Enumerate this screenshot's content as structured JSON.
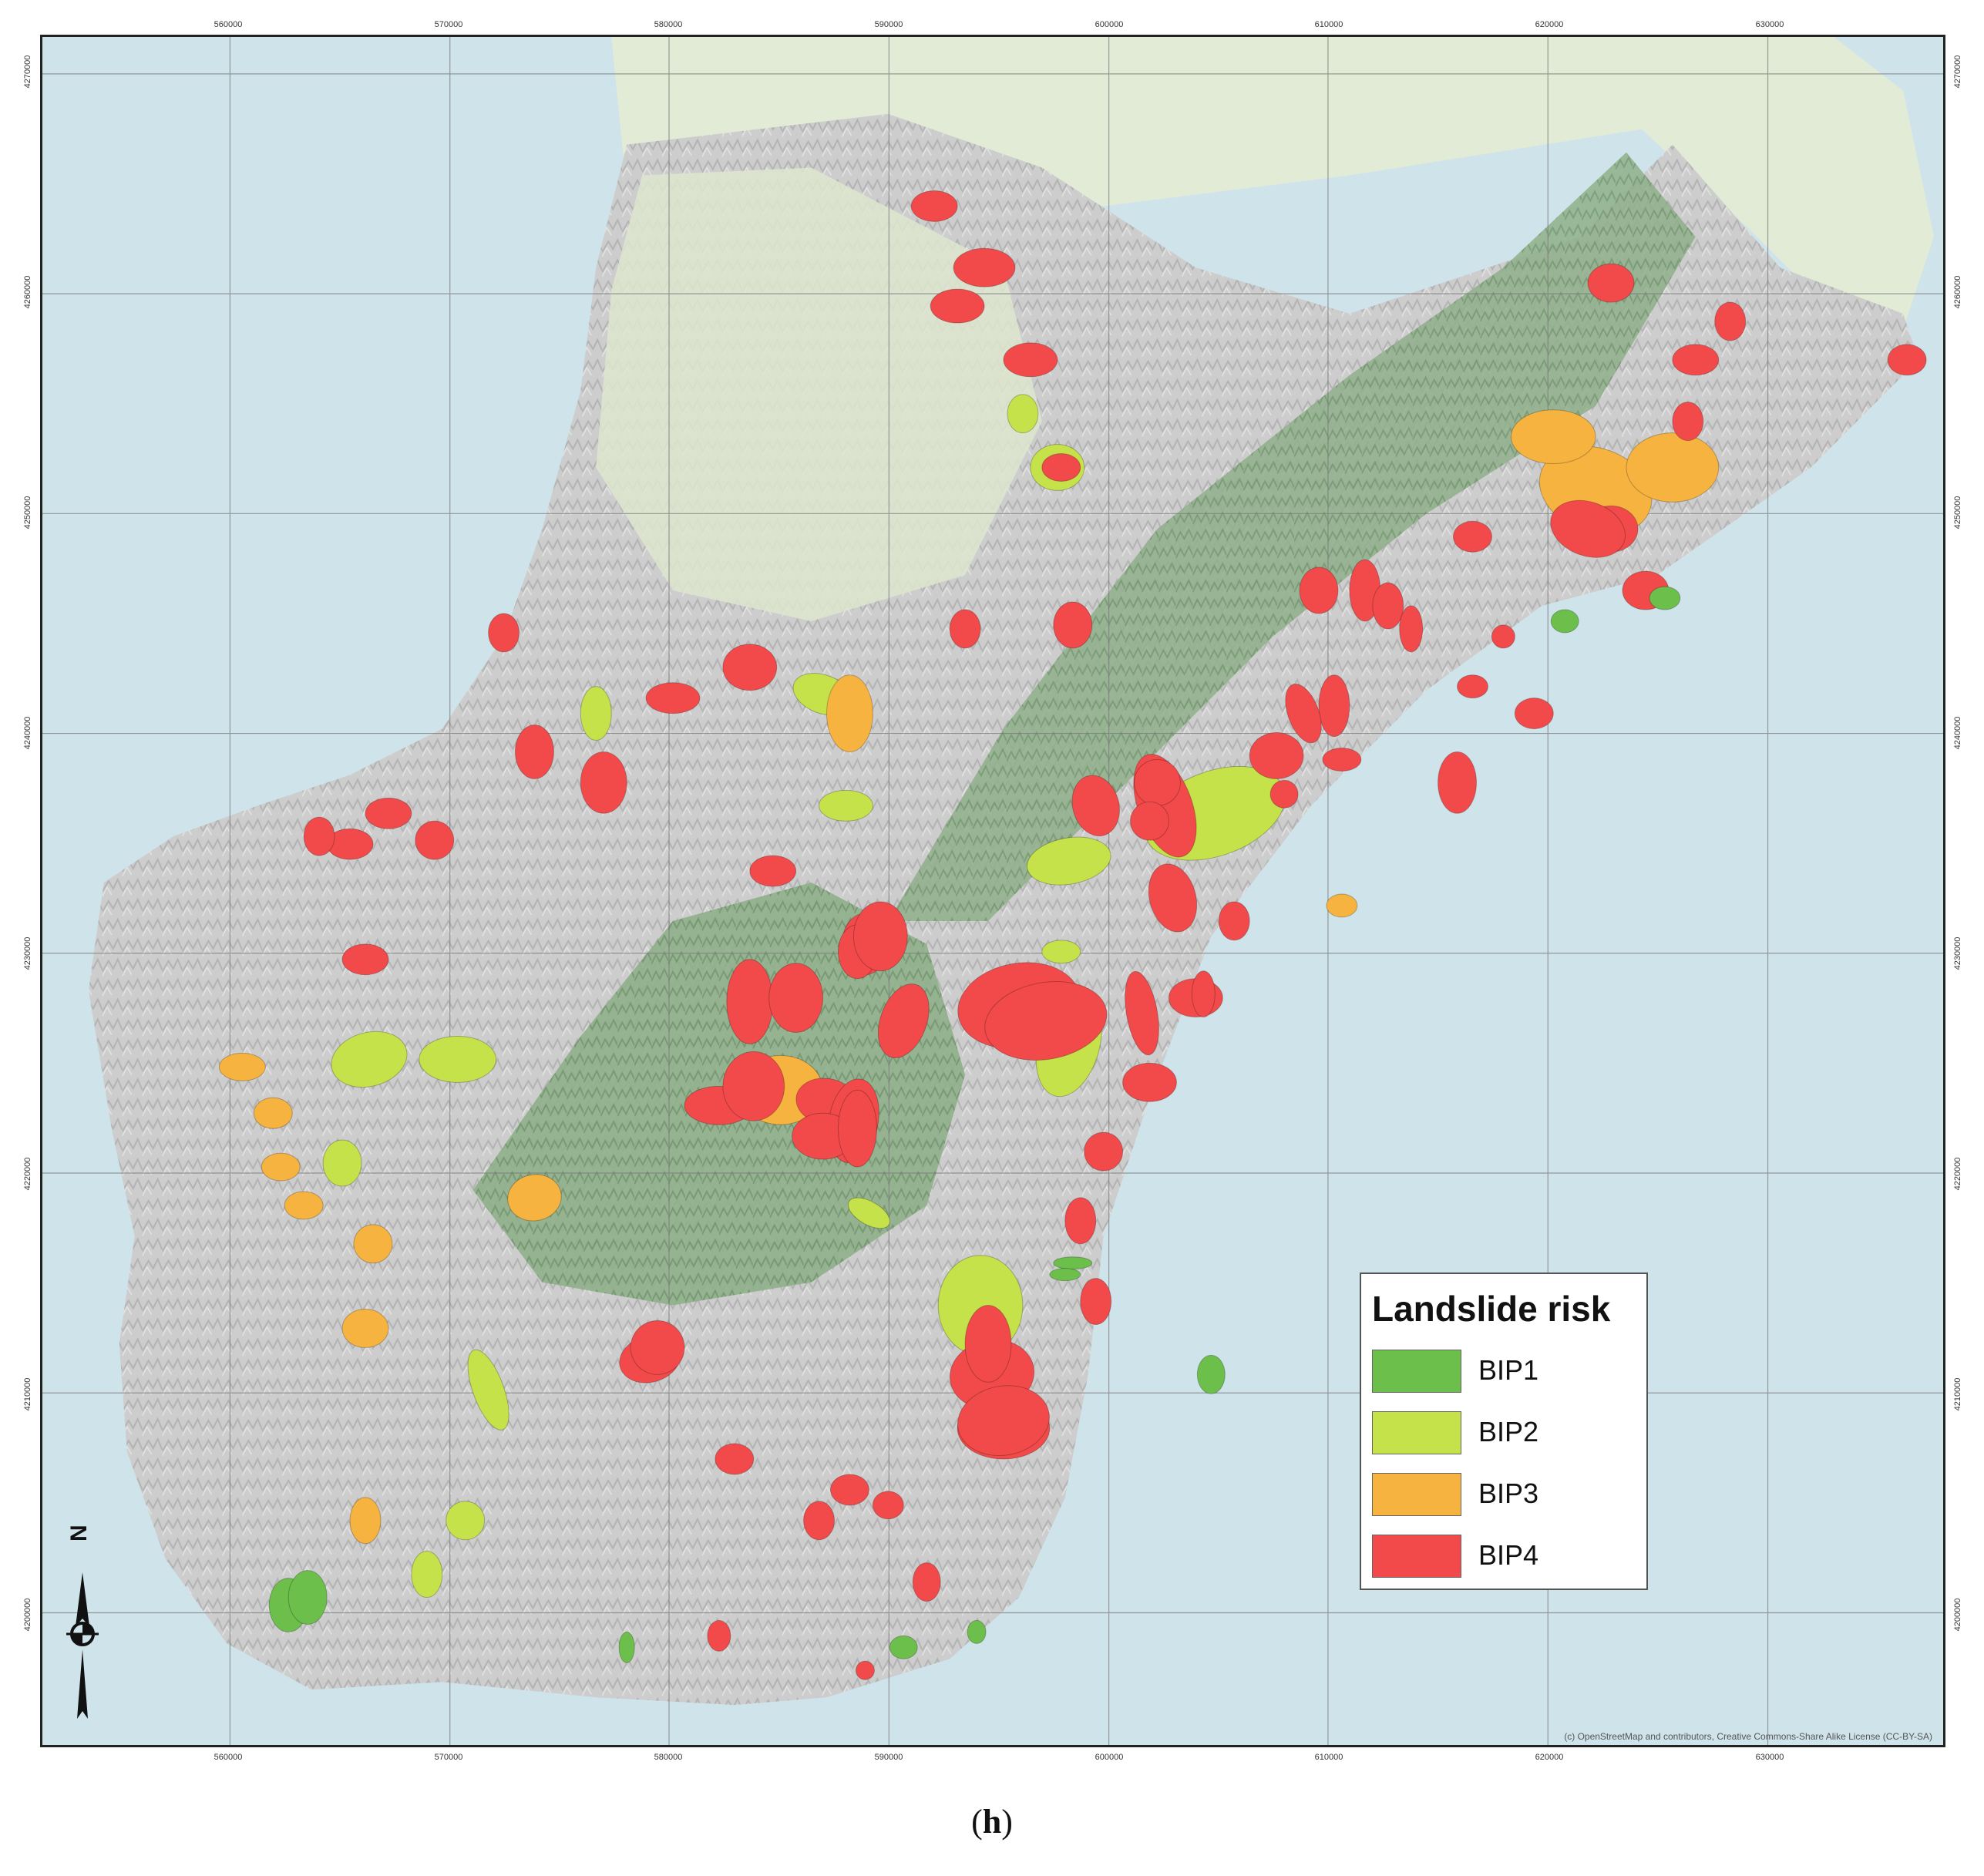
{
  "map": {
    "x_ticks": [
      "560000",
      "570000",
      "580000",
      "590000",
      "600000",
      "610000",
      "620000",
      "630000"
    ],
    "y_ticks": [
      "4270000",
      "4260000",
      "4250000",
      "4240000",
      "4230000",
      "4220000",
      "4210000",
      "4200000"
    ],
    "attribution": "(c) OpenStreetMap and contributors, Creative Commons-Share Alike License (CC-BY-SA)",
    "colors": {
      "sea": "#cfe3ea",
      "land_relief": "#cfcfcf",
      "land_forest": "#8fb58a",
      "land_plain": "#dfe8d2"
    }
  },
  "legend": {
    "title": "Landslide risk",
    "items": [
      {
        "label": "BIP1",
        "color": "#6cbf4a"
      },
      {
        "label": "BIP2",
        "color": "#c5e24a"
      },
      {
        "label": "BIP3",
        "color": "#f6b33f"
      },
      {
        "label": "BIP4",
        "color": "#f24a4a"
      }
    ]
  },
  "caption": {
    "open": "(",
    "letter": "h",
    "close": ")"
  },
  "north_arrow": {
    "letter": "N"
  }
}
